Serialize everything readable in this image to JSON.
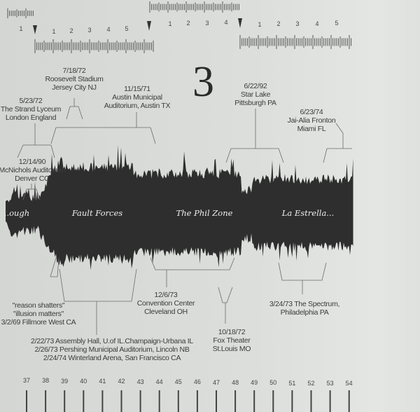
{
  "disc_number": "3",
  "top_ruler": {
    "numbers_a": [
      "1"
    ],
    "numbers_b": [
      "1",
      "2",
      "3",
      "4",
      "5"
    ],
    "numbers_c": [
      "1",
      "2",
      "3",
      "4"
    ],
    "numbers_d": [
      "1",
      "2",
      "3",
      "4",
      "5"
    ],
    "marker_icon": "down-triangle"
  },
  "songs": [
    "..ough",
    "Fault Forces",
    "The Phil Zone",
    "La Estrella..."
  ],
  "annotations": {
    "roosevelt": [
      "7/18/72",
      "Roosevelt Stadium",
      "Jersey City NJ"
    ],
    "strand": [
      "5/23/72",
      "The Strand Lyceum",
      "London England"
    ],
    "austin": [
      "11/15/71",
      "Austin Municipal",
      "Auditorium, Austin TX"
    ],
    "starlake": [
      "6/22/92",
      "Star Lake",
      "Pittsburgh PA"
    ],
    "jaialai": [
      "6/23/74",
      "Jai-Alia Fronton",
      "Miami FL"
    ],
    "mcnichols": [
      "12/14/90",
      "McNichols Auditorium",
      "Denver CO"
    ],
    "fillmore": [
      "\"reason shatters\"",
      "\"illusion matters\"",
      "3/2/69 Fillmore West CA"
    ],
    "cleveland": [
      "12/6/73",
      "Convention Center",
      "Cleveland OH"
    ],
    "fox": [
      "10/18/72",
      "Fox Theater",
      "St.Louis MO"
    ],
    "spectrum": [
      "3/24/73 The Spectrum,",
      "Philadelphia PA"
    ],
    "multi": [
      "2/22/73 Assembly Hall, U.of IL.Champaign-Urbana IL",
      "2/26/73 Pershing Municipal Auditorium, Lincoln NB",
      "2/24/74 Winterland Arena, San Francisco CA"
    ]
  },
  "bottom_ruler": [
    "37",
    "38",
    "39",
    "40",
    "41",
    "42",
    "43",
    "44",
    "45",
    "46",
    "47",
    "48",
    "49",
    "50",
    "51",
    "52",
    "53",
    "54"
  ],
  "colors": {
    "paper": "#d8dad8",
    "ink": "#2b2b2b"
  }
}
